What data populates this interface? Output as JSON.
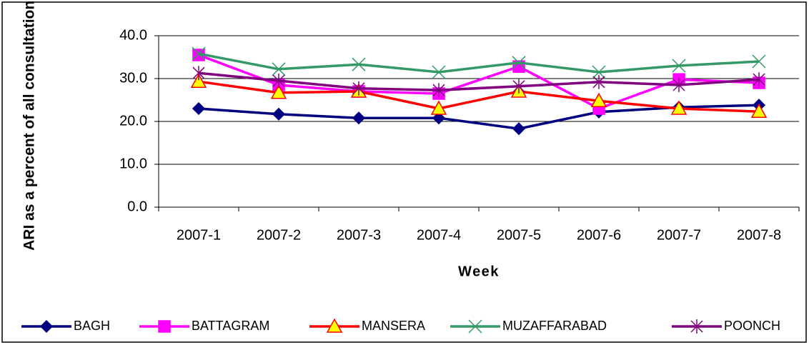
{
  "chart_data": {
    "type": "line",
    "y_label": "ARI as a percent of all consultations",
    "x_label": "Week",
    "categories": [
      "2007-1",
      "2007-2",
      "2007-3",
      "2007-4",
      "2007-5",
      "2007-6",
      "2007-7",
      "2007-8"
    ],
    "series": [
      {
        "name": "BAGH",
        "color": "#000080",
        "marker": "diamond",
        "marker_fill": "#000080",
        "values": [
          23.0,
          21.7,
          20.8,
          20.8,
          18.3,
          22.2,
          23.3,
          23.8
        ]
      },
      {
        "name": "BATTAGRAM",
        "color": "#ff00ff",
        "marker": "square",
        "marker_fill": "#ff00ff",
        "values": [
          35.5,
          28.5,
          27.0,
          26.5,
          32.8,
          23.0,
          29.8,
          29.0
        ]
      },
      {
        "name": "MANSERA",
        "color": "#ff0000",
        "marker": "triangle",
        "marker_fill": "#ffff00",
        "values": [
          29.3,
          26.7,
          27.0,
          23.0,
          27.0,
          24.8,
          23.0,
          22.3
        ]
      },
      {
        "name": "MUZAFFARABAD",
        "color": "#339966",
        "marker": "x",
        "marker_fill": "none",
        "values": [
          35.8,
          32.2,
          33.3,
          31.5,
          33.7,
          31.5,
          33.0,
          34.0
        ]
      },
      {
        "name": "POONCH",
        "color": "#800080",
        "marker": "asterisk",
        "marker_fill": "none",
        "values": [
          31.3,
          29.5,
          27.7,
          27.3,
          28.2,
          29.2,
          28.5,
          29.8
        ]
      }
    ],
    "ylim": [
      0,
      40
    ],
    "yticks": [
      {
        "value": 0,
        "label": "0.0"
      },
      {
        "value": 10,
        "label": "10.0"
      },
      {
        "value": 20,
        "label": "20.0"
      },
      {
        "value": 30,
        "label": "30.0"
      },
      {
        "value": 40,
        "label": "40.0"
      }
    ],
    "grid": true,
    "legend": "bottom"
  }
}
